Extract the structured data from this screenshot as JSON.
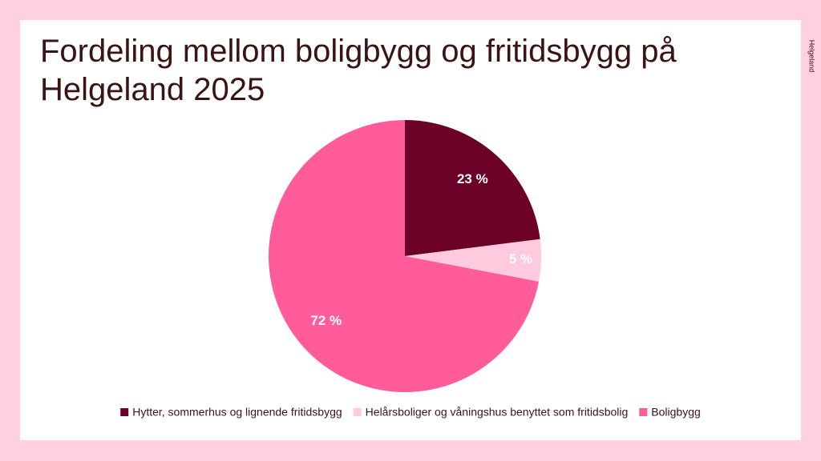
{
  "logo": "Helgeland",
  "chart_data": {
    "type": "pie",
    "title": "Fordeling mellom boligbygg og fritidsbygg på Helgeland 2025",
    "categories": [
      "Hytter, sommerhus og lignende fritidsbygg",
      "Helårsboliger og våningshus benyttet som fritidsbolig",
      "Boligbygg"
    ],
    "values": [
      23,
      5,
      72
    ],
    "value_labels": [
      "23 %",
      "5 %",
      "72 %"
    ],
    "colors": [
      "#6d0026",
      "#ffc9de",
      "#ff5c99"
    ],
    "legend": "bottom"
  }
}
